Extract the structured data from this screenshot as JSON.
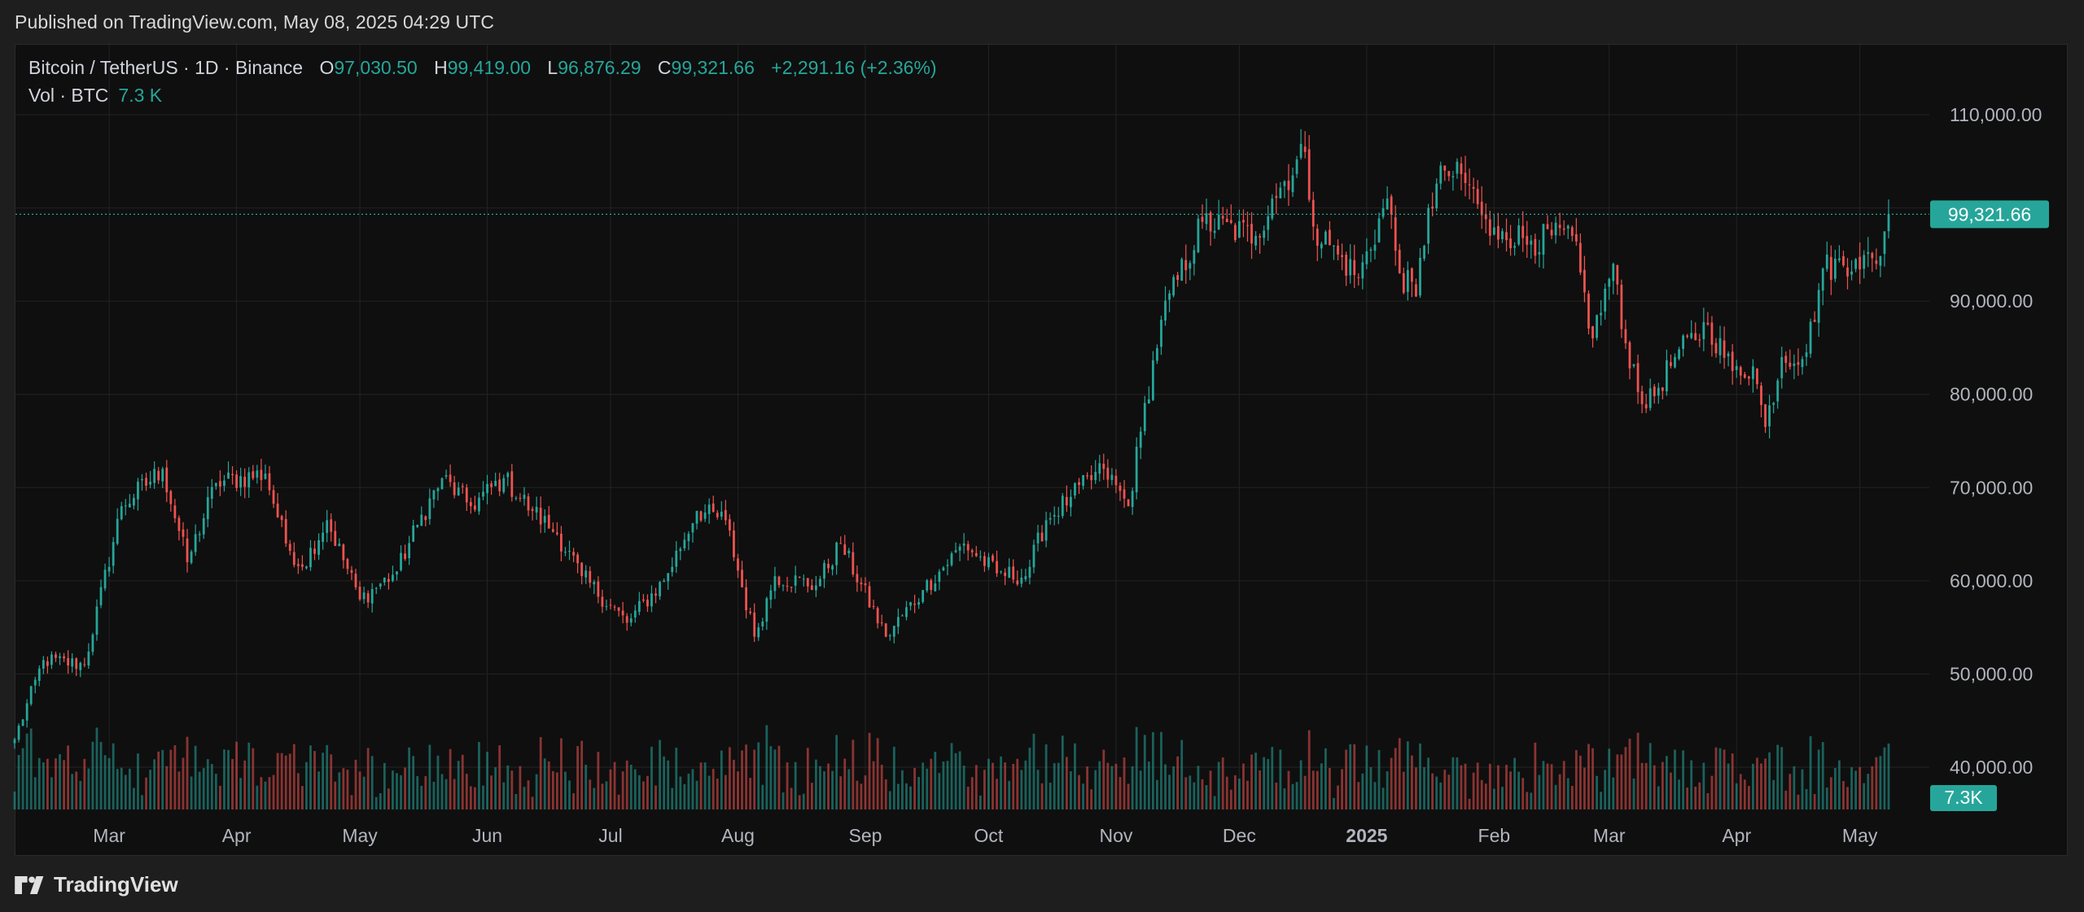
{
  "header": {
    "published": "Published on TradingView.com, May 08, 2025 04:29 UTC"
  },
  "legend": {
    "symbol": "Bitcoin / TetherUS · 1D · Binance",
    "o_label": "O",
    "o_value": "97,030.50",
    "h_label": "H",
    "h_value": "99,419.00",
    "l_label": "L",
    "l_value": "96,876.29",
    "c_label": "C",
    "c_value": "99,321.66",
    "change": "+2,291.16 (+2.36%)",
    "vol_label": "Vol · BTC",
    "vol_value": "7.3 K"
  },
  "footer": {
    "brand": "TradingView"
  },
  "colors": {
    "up": "#26a69a",
    "down": "#ef5350",
    "background": "#0f0f0f",
    "grid": "#232323",
    "axis_text": "#b2b5be"
  },
  "chart_data": {
    "type": "candlestick",
    "interval": "1D",
    "y_ticks": [
      "110,000.00",
      "90,000.00",
      "80,000.00",
      "70,000.00",
      "60,000.00",
      "50,000.00",
      "40,000.00"
    ],
    "y_tick_values": [
      110000,
      90000,
      80000,
      70000,
      60000,
      50000,
      40000
    ],
    "ylim": [
      35600,
      116600
    ],
    "x_labels": [
      "Mar",
      "Apr",
      "May",
      "Jun",
      "Jul",
      "Aug",
      "Sep",
      "Oct",
      "Nov",
      "Dec",
      "2025",
      "Feb",
      "Mar",
      "Apr",
      "May"
    ],
    "x_label_dates": [
      "2024-03-01",
      "2024-04-01",
      "2024-05-01",
      "2024-06-01",
      "2024-07-01",
      "2024-08-01",
      "2024-09-01",
      "2024-10-01",
      "2024-11-01",
      "2024-12-01",
      "2025-01-01",
      "2025-02-01",
      "2025-03-01",
      "2025-04-01",
      "2025-05-01"
    ],
    "last_price_label": "99,321.66",
    "last_price": 99321.66,
    "last_volume_label": "7.3K",
    "start_date": "2024-02-07",
    "end_date": "2025-05-08",
    "anchors": [
      [
        "2024-02-07",
        43000
      ],
      [
        "2024-02-14",
        51500
      ],
      [
        "2024-02-24",
        51000
      ],
      [
        "2024-03-04",
        68000
      ],
      [
        "2024-03-14",
        72000
      ],
      [
        "2024-03-20",
        62000
      ],
      [
        "2024-03-27",
        70500
      ],
      [
        "2024-04-08",
        71500
      ],
      [
        "2024-04-13",
        64000
      ],
      [
        "2024-04-17",
        61500
      ],
      [
        "2024-04-23",
        66500
      ],
      [
        "2024-05-01",
        58000
      ],
      [
        "2024-05-10",
        61000
      ],
      [
        "2024-05-15",
        66000
      ],
      [
        "2024-05-21",
        71000
      ],
      [
        "2024-05-28",
        68000
      ],
      [
        "2024-06-05",
        71000
      ],
      [
        "2024-06-12",
        67500
      ],
      [
        "2024-06-18",
        65000
      ],
      [
        "2024-06-24",
        60500
      ],
      [
        "2024-07-05",
        55500
      ],
      [
        "2024-07-14",
        60000
      ],
      [
        "2024-07-22",
        67500
      ],
      [
        "2024-07-29",
        66500
      ],
      [
        "2024-08-05",
        54000
      ],
      [
        "2024-08-10",
        60500
      ],
      [
        "2024-08-20",
        59500
      ],
      [
        "2024-08-26",
        64000
      ],
      [
        "2024-09-06",
        54000
      ],
      [
        "2024-09-15",
        59000
      ],
      [
        "2024-09-25",
        64000
      ],
      [
        "2024-10-03",
        60800
      ],
      [
        "2024-10-10",
        60500
      ],
      [
        "2024-10-15",
        66500
      ],
      [
        "2024-10-21",
        69000
      ],
      [
        "2024-10-29",
        72000
      ],
      [
        "2024-11-04",
        68000
      ],
      [
        "2024-11-07",
        76000
      ],
      [
        "2024-11-12",
        88000
      ],
      [
        "2024-11-22",
        98500
      ],
      [
        "2024-12-05",
        97000
      ],
      [
        "2024-12-09",
        101000
      ],
      [
        "2024-12-17",
        106000
      ],
      [
        "2024-12-19",
        98000
      ],
      [
        "2024-12-25",
        95000
      ],
      [
        "2024-12-30",
        92500
      ],
      [
        "2025-01-06",
        101000
      ],
      [
        "2025-01-09",
        93000
      ],
      [
        "2025-01-13",
        90500
      ],
      [
        "2025-01-16",
        100000
      ],
      [
        "2025-01-20",
        104000
      ],
      [
        "2025-01-26",
        102500
      ],
      [
        "2025-01-31",
        97000
      ],
      [
        "2025-02-03",
        97500
      ],
      [
        "2025-02-10",
        96500
      ],
      [
        "2025-02-20",
        97000
      ],
      [
        "2025-02-25",
        86000
      ],
      [
        "2025-03-02",
        94000
      ],
      [
        "2025-03-04",
        87000
      ],
      [
        "2025-03-10",
        78500
      ],
      [
        "2025-03-17",
        84000
      ],
      [
        "2025-03-25",
        87500
      ],
      [
        "2025-03-31",
        82500
      ],
      [
        "2025-04-05",
        83000
      ],
      [
        "2025-04-08",
        76500
      ],
      [
        "2025-04-12",
        84000
      ],
      [
        "2025-04-18",
        84500
      ],
      [
        "2025-04-22",
        93500
      ],
      [
        "2025-04-30",
        94500
      ],
      [
        "2025-05-05",
        94000
      ],
      [
        "2025-05-08",
        99321.66
      ]
    ]
  }
}
